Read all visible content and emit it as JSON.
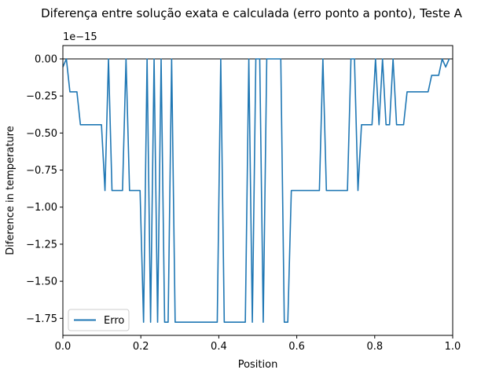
{
  "chart_data": {
    "type": "line",
    "title": "Diferença entre solução exata e calculada (erro ponto a ponto), Teste A",
    "xlabel": "Position",
    "ylabel": "Diference in temperature",
    "y_offset_label": "1e−15",
    "xlim": [
      0.0,
      1.0
    ],
    "ylim": [
      -1.865,
      0.09
    ],
    "x_ticks": [
      0.0,
      0.2,
      0.4,
      0.6,
      0.8,
      1.0
    ],
    "x_tick_labels": [
      "0.0",
      "0.2",
      "0.4",
      "0.6",
      "0.8",
      "1.0"
    ],
    "y_ticks": [
      0.0,
      -0.25,
      -0.5,
      -0.75,
      -1.0,
      -1.25,
      -1.5,
      -1.75
    ],
    "y_tick_labels": [
      "0.00",
      "−0.25",
      "−0.50",
      "−0.75",
      "−1.00",
      "−1.25",
      "−1.50",
      "−1.75"
    ],
    "reference_line_y": 0.0,
    "grid": false,
    "legend_position": "lower left",
    "colors": {
      "series": "#1f77b4",
      "reference": "#000000"
    },
    "series": [
      {
        "name": "Erro",
        "x": [
          0.0,
          0.009,
          0.018,
          0.027,
          0.036,
          0.045,
          0.054,
          0.063,
          0.072,
          0.081,
          0.09,
          0.099,
          0.108,
          0.117,
          0.126,
          0.135,
          0.144,
          0.153,
          0.162,
          0.171,
          0.18,
          0.189,
          0.198,
          0.207,
          0.216,
          0.225,
          0.234,
          0.243,
          0.252,
          0.261,
          0.27,
          0.279,
          0.288,
          0.297,
          0.306,
          0.315,
          0.324,
          0.333,
          0.342,
          0.351,
          0.36,
          0.369,
          0.378,
          0.387,
          0.396,
          0.405,
          0.414,
          0.423,
          0.432,
          0.441,
          0.45,
          0.459,
          0.468,
          0.477,
          0.486,
          0.495,
          0.505,
          0.514,
          0.523,
          0.532,
          0.541,
          0.55,
          0.559,
          0.568,
          0.577,
          0.586,
          0.595,
          0.604,
          0.613,
          0.622,
          0.631,
          0.64,
          0.649,
          0.658,
          0.667,
          0.676,
          0.685,
          0.694,
          0.703,
          0.712,
          0.721,
          0.73,
          0.739,
          0.748,
          0.757,
          0.766,
          0.775,
          0.784,
          0.793,
          0.802,
          0.811,
          0.82,
          0.829,
          0.838,
          0.847,
          0.856,
          0.865,
          0.874,
          0.883,
          0.892,
          0.901,
          0.91,
          0.919,
          0.928,
          0.937,
          0.946,
          0.955,
          0.964,
          0.973,
          0.982,
          0.991
        ],
        "y": [
          -0.055,
          0.0,
          -0.222,
          -0.222,
          -0.222,
          -0.444,
          -0.444,
          -0.444,
          -0.444,
          -0.444,
          -0.444,
          -0.444,
          -0.888,
          0.0,
          -0.888,
          -0.888,
          -0.888,
          -0.888,
          0.0,
          -0.888,
          -0.888,
          -0.888,
          -0.888,
          -1.776,
          0.0,
          -1.776,
          0.0,
          -1.776,
          0.0,
          -1.776,
          -1.776,
          0.0,
          -1.776,
          -1.776,
          -1.776,
          -1.776,
          -1.776,
          -1.776,
          -1.776,
          -1.776,
          -1.776,
          -1.776,
          -1.776,
          -1.776,
          -1.776,
          0.0,
          -1.776,
          -1.776,
          -1.776,
          -1.776,
          -1.776,
          -1.776,
          -1.776,
          0.0,
          -1.776,
          0.0,
          0.0,
          -1.776,
          0.0,
          0.0,
          0.0,
          0.0,
          0.0,
          -1.776,
          -1.776,
          -0.888,
          -0.888,
          -0.888,
          -0.888,
          -0.888,
          -0.888,
          -0.888,
          -0.888,
          -0.888,
          0.0,
          -0.888,
          -0.888,
          -0.888,
          -0.888,
          -0.888,
          -0.888,
          -0.888,
          0.0,
          0.0,
          -0.888,
          -0.444,
          -0.444,
          -0.444,
          -0.444,
          0.0,
          -0.444,
          0.0,
          -0.444,
          -0.444,
          0.0,
          -0.444,
          -0.444,
          -0.444,
          -0.222,
          -0.222,
          -0.222,
          -0.222,
          -0.222,
          -0.222,
          -0.222,
          -0.111,
          -0.111,
          -0.111,
          0.0,
          -0.055,
          0.0
        ]
      }
    ]
  }
}
